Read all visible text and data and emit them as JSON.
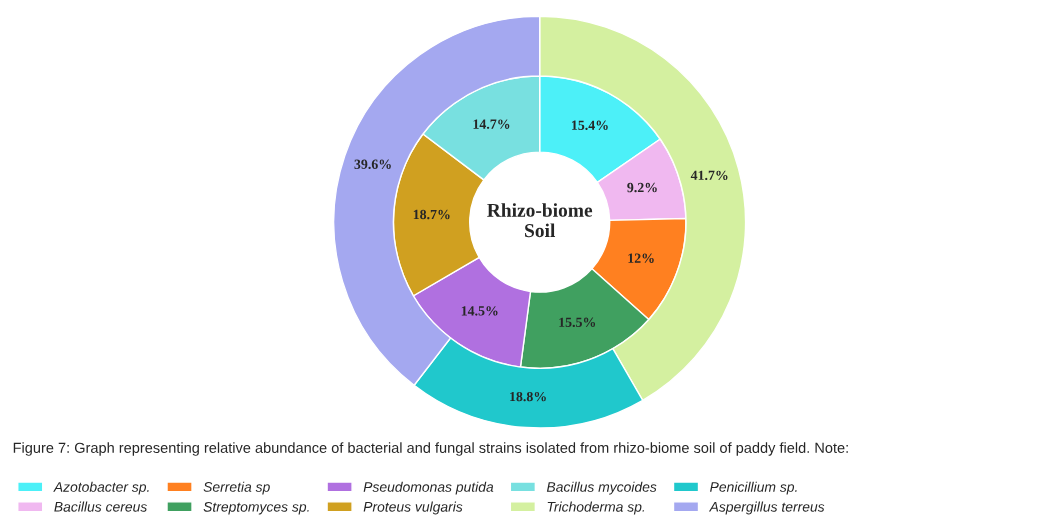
{
  "chart_data": {
    "type": "donut",
    "title": "Rhizo-biome\nSoil",
    "categories": [
      "Azotobacter sp.",
      "Bacillus cereus",
      "Serretia sp",
      "Streptomyces sp.",
      "Pseudomonas putida",
      "Proteus vulgaris",
      "Bacillus mycoides",
      "Trichoderma sp.",
      "Penicillium sp.",
      "Aspergillus terreus"
    ],
    "colors": [
      "#4cf0f8",
      "#f0b8f0",
      "#ff8020",
      "#40a060",
      "#b070e0",
      "#d0a020",
      "#78e0e0",
      "#d4f0a0",
      "#20c8cc",
      "#a4a8f0"
    ],
    "series": [
      {
        "values": [
          15.4,
          9.2,
          12,
          15.5,
          14.5,
          18.7,
          14.7,
          null,
          null,
          null
        ],
        "value_labels": [
          "15.4%",
          "9.2%",
          "12%",
          "15.5%",
          "14.5%",
          "18.7%",
          "14.7%",
          null,
          null,
          null
        ]
      },
      {
        "values": [
          null,
          null,
          null,
          null,
          null,
          null,
          null,
          41.7,
          18.8,
          39.6
        ],
        "value_labels": [
          null,
          null,
          null,
          null,
          null,
          null,
          null,
          "41.7%",
          "18.8%",
          "39.6%"
        ]
      }
    ],
    "legend": "bottom",
    "annotations": [
      "Figure 7: Graph representing relative abundance of bacterial and fungal strains isolated from rhizo-biome soil of paddy field. Note:"
    ]
  }
}
